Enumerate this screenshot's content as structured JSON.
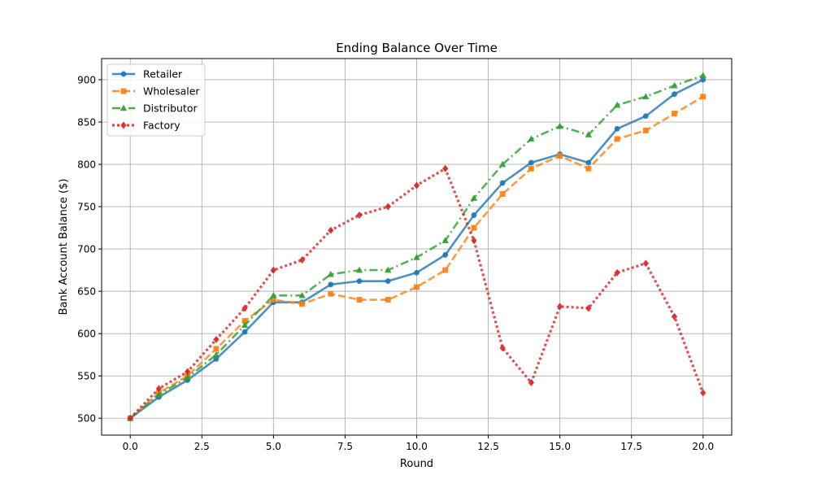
{
  "chart_data": {
    "type": "line",
    "title": "Ending Balance Over Time",
    "xlabel": "Round",
    "ylabel": "Bank Account Balance ($)",
    "xlim": [
      -1,
      21
    ],
    "ylim": [
      480,
      925
    ],
    "xticks": [
      0.0,
      2.5,
      5.0,
      7.5,
      10.0,
      12.5,
      15.0,
      17.5,
      20.0
    ],
    "xtick_labels": [
      "0.0",
      "2.5",
      "5.0",
      "7.5",
      "10.0",
      "12.5",
      "15.0",
      "17.5",
      "20.0"
    ],
    "yticks": [
      500,
      550,
      600,
      650,
      700,
      750,
      800,
      850,
      900
    ],
    "ytick_labels": [
      "500",
      "550",
      "600",
      "650",
      "700",
      "750",
      "800",
      "850",
      "900"
    ],
    "grid": true,
    "legend_position": "top-left",
    "x": [
      0,
      1,
      2,
      3,
      4,
      5,
      6,
      7,
      8,
      9,
      10,
      11,
      12,
      13,
      14,
      15,
      16,
      17,
      18,
      19,
      20
    ],
    "series": [
      {
        "name": "Retailer",
        "color": "#1f77b4",
        "line_style": "solid",
        "marker": "circle",
        "values": [
          500,
          525,
          545,
          570,
          602,
          637,
          637,
          658,
          662,
          662,
          672,
          693,
          740,
          778,
          802,
          812,
          802,
          842,
          857,
          883,
          900
        ]
      },
      {
        "name": "Wholesaler",
        "color": "#ff7f0e",
        "line_style": "dashed",
        "marker": "square",
        "values": [
          500,
          530,
          550,
          582,
          615,
          640,
          635,
          647,
          640,
          640,
          655,
          675,
          725,
          765,
          795,
          810,
          795,
          830,
          840,
          860,
          880
        ]
      },
      {
        "name": "Distributor",
        "color": "#2ca02c",
        "line_style": "dashdot",
        "marker": "triangle",
        "values": [
          500,
          528,
          548,
          575,
          610,
          645,
          645,
          670,
          675,
          675,
          690,
          710,
          760,
          800,
          830,
          845,
          835,
          870,
          880,
          893,
          905
        ]
      },
      {
        "name": "Factory",
        "color": "#d62728",
        "line_style": "dotted",
        "marker": "diamond",
        "values": [
          500,
          535,
          555,
          593,
          630,
          675,
          687,
          722,
          740,
          750,
          775,
          795,
          710,
          583,
          542,
          632,
          630,
          672,
          683,
          620,
          530
        ]
      }
    ]
  }
}
